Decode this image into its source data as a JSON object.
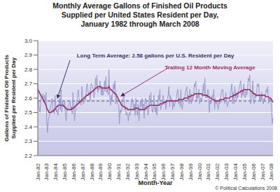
{
  "chart_data": {
    "type": "line",
    "title": [
      "Monthly Average Gallons of Finished Oil Products",
      "Supplied per United States Resident per Day,",
      "January 1982 through March 2008"
    ],
    "x_label": "Month-Year",
    "y_label": [
      "Gallons of Finished Oil Products",
      "Supplied per Resident per Day"
    ],
    "credit": "© Political Calculations 2008",
    "grid": true,
    "ylim": [
      2.2,
      3.0
    ],
    "yticks": [
      2.2,
      2.3,
      2.4,
      2.5,
      2.6,
      2.7,
      2.8,
      2.9,
      {
        "value": 3,
        "label": "3.0"
      }
    ],
    "reference_line": {
      "value": 2.58,
      "label": "Long Term Average: 2.58 gallons per U.S. Resident per Day",
      "line_style": "dashed"
    },
    "categories": [
      "Jan-82",
      null,
      null,
      null,
      null,
      null,
      null,
      null,
      null,
      null,
      null,
      null,
      "Jan-83",
      null,
      null,
      null,
      null,
      null,
      null,
      null,
      null,
      null,
      null,
      null,
      "Jan-84",
      null,
      null,
      null,
      null,
      null,
      null,
      null,
      null,
      null,
      null,
      null,
      "Jan-85",
      null,
      null,
      null,
      null,
      null,
      null,
      null,
      null,
      null,
      null,
      null,
      "Jan-86",
      null,
      null,
      null,
      null,
      null,
      null,
      null,
      null,
      null,
      null,
      null,
      "Jan-87",
      null,
      null,
      null,
      null,
      null,
      null,
      null,
      null,
      null,
      null,
      null,
      "Jan-88",
      null,
      null,
      null,
      null,
      null,
      null,
      null,
      null,
      null,
      null,
      null,
      "Jan-89",
      null,
      null,
      null,
      null,
      null,
      null,
      null,
      null,
      null,
      null,
      null,
      "Jan-90",
      null,
      null,
      null,
      null,
      null,
      null,
      null,
      null,
      null,
      null,
      null,
      "Jan-91",
      null,
      null,
      null,
      null,
      null,
      null,
      null,
      null,
      null,
      null,
      null,
      "Jan-92",
      null,
      null,
      null,
      null,
      null,
      null,
      null,
      null,
      null,
      null,
      null,
      "Jan-93",
      null,
      null,
      null,
      null,
      null,
      null,
      null,
      null,
      null,
      null,
      null,
      "Jan-94",
      null,
      null,
      null,
      null,
      null,
      null,
      null,
      null,
      null,
      null,
      null,
      "Jan-95",
      null,
      null,
      null,
      null,
      null,
      null,
      null,
      null,
      null,
      null,
      null,
      "Jan-96",
      null,
      null,
      null,
      null,
      null,
      null,
      null,
      null,
      null,
      null,
      null,
      "Jan-97",
      null,
      null,
      null,
      null,
      null,
      null,
      null,
      null,
      null,
      null,
      null,
      "Jan-98",
      null,
      null,
      null,
      null,
      null,
      null,
      null,
      null,
      null,
      null,
      null,
      "Jan-99",
      null,
      null,
      null,
      null,
      null,
      null,
      null,
      null,
      null,
      null,
      null,
      "Jan-00",
      null,
      null,
      null,
      null,
      null,
      null,
      null,
      null,
      null,
      null,
      null,
      "Jan-01",
      null,
      null,
      null,
      null,
      null,
      null,
      null,
      null,
      null,
      null,
      null,
      "Jan-02",
      null,
      null,
      null,
      null,
      null,
      null,
      null,
      null,
      null,
      null,
      null,
      "Jan-03",
      null,
      null,
      null,
      null,
      null,
      null,
      null,
      null,
      null,
      null,
      null,
      "Jan-04",
      null,
      null,
      null,
      null,
      null,
      null,
      null,
      null,
      null,
      null,
      null,
      "Jan-05",
      null,
      null,
      null,
      null,
      null,
      null,
      null,
      null,
      null,
      null,
      null,
      "Jan-06",
      null,
      null,
      null,
      null,
      null,
      null,
      null,
      null,
      null,
      null,
      null,
      "Jan-07",
      null,
      null,
      null,
      null,
      null,
      null,
      null,
      null,
      null,
      null,
      null,
      "Jan-08",
      null,
      null
    ],
    "series": [
      {
        "color": "#9999cc",
        "values": [
          2.7,
          2.55,
          2.52,
          2.5,
          2.58,
          2.62,
          2.6,
          2.63,
          2.58,
          2.62,
          2.57,
          2.64,
          2.42,
          2.36,
          2.45,
          2.46,
          2.5,
          2.55,
          2.56,
          2.6,
          2.5,
          2.52,
          2.49,
          2.62,
          2.55,
          2.5,
          2.52,
          2.48,
          2.55,
          2.6,
          2.52,
          2.66,
          2.5,
          2.58,
          2.54,
          2.55,
          2.58,
          2.47,
          2.44,
          2.52,
          2.53,
          2.55,
          2.56,
          2.58,
          2.52,
          2.54,
          2.49,
          2.64,
          2.55,
          2.44,
          2.5,
          2.55,
          2.57,
          2.62,
          2.66,
          2.6,
          2.58,
          2.56,
          2.55,
          2.68,
          2.6,
          2.56,
          2.58,
          2.6,
          2.58,
          2.68,
          2.7,
          2.64,
          2.62,
          2.65,
          2.58,
          2.7,
          2.7,
          2.68,
          2.66,
          2.6,
          2.64,
          2.74,
          2.68,
          2.76,
          2.64,
          2.67,
          2.66,
          2.72,
          2.66,
          2.62,
          2.68,
          2.62,
          2.64,
          2.72,
          2.65,
          2.75,
          2.64,
          2.66,
          2.62,
          2.8,
          2.62,
          2.55,
          2.62,
          2.58,
          2.64,
          2.7,
          2.66,
          2.72,
          2.56,
          2.62,
          2.56,
          2.56,
          2.55,
          2.42,
          2.52,
          2.5,
          2.52,
          2.58,
          2.6,
          2.62,
          2.52,
          2.54,
          2.48,
          2.5,
          2.48,
          2.44,
          2.5,
          2.48,
          2.5,
          2.58,
          2.6,
          2.56,
          2.52,
          2.56,
          2.48,
          2.6,
          2.5,
          2.48,
          2.56,
          2.44,
          2.5,
          2.58,
          2.54,
          2.6,
          2.52,
          2.56,
          2.46,
          2.58,
          2.6,
          2.56,
          2.54,
          2.48,
          2.5,
          2.62,
          2.56,
          2.64,
          2.54,
          2.5,
          2.52,
          2.62,
          2.52,
          2.5,
          2.55,
          2.48,
          2.54,
          2.62,
          2.58,
          2.66,
          2.52,
          2.54,
          2.56,
          2.62,
          2.6,
          2.56,
          2.58,
          2.52,
          2.56,
          2.6,
          2.62,
          2.68,
          2.54,
          2.62,
          2.58,
          2.6,
          2.52,
          2.58,
          2.54,
          2.56,
          2.58,
          2.6,
          2.64,
          2.66,
          2.56,
          2.6,
          2.54,
          2.66,
          2.54,
          2.52,
          2.58,
          2.6,
          2.58,
          2.64,
          2.66,
          2.68,
          2.58,
          2.62,
          2.56,
          2.66,
          2.6,
          2.56,
          2.62,
          2.58,
          2.62,
          2.7,
          2.68,
          2.72,
          2.58,
          2.62,
          2.6,
          2.66,
          2.56,
          2.6,
          2.6,
          2.58,
          2.64,
          2.7,
          2.62,
          2.74,
          2.6,
          2.62,
          2.6,
          2.66,
          2.64,
          2.5,
          2.58,
          2.56,
          2.6,
          2.62,
          2.6,
          2.66,
          2.52,
          2.6,
          2.56,
          2.58,
          2.54,
          2.52,
          2.58,
          2.56,
          2.6,
          2.64,
          2.66,
          2.66,
          2.58,
          2.6,
          2.56,
          2.64,
          2.58,
          2.54,
          2.56,
          2.58,
          2.58,
          2.64,
          2.66,
          2.7,
          2.56,
          2.64,
          2.56,
          2.68,
          2.62,
          2.58,
          2.64,
          2.6,
          2.64,
          2.68,
          2.7,
          2.72,
          2.6,
          2.66,
          2.62,
          2.7,
          2.62,
          2.6,
          2.66,
          2.62,
          2.66,
          2.74,
          2.72,
          2.76,
          2.56,
          2.58,
          2.62,
          2.72,
          2.58,
          2.56,
          2.62,
          2.6,
          2.62,
          2.7,
          2.68,
          2.7,
          2.58,
          2.62,
          2.58,
          2.64,
          2.58,
          2.56,
          2.6,
          2.58,
          2.62,
          2.66,
          2.64,
          2.68,
          2.56,
          2.6,
          2.58,
          2.6,
          2.54,
          2.42,
          2.46
        ]
      },
      {
        "name": "Trailing 12 Month Moving Average",
        "color": "#993366",
        "values": [
          2.66,
          2.65,
          2.64,
          2.63,
          2.62,
          2.61,
          2.6,
          2.59,
          2.58,
          2.57,
          2.56,
          2.55,
          2.53,
          2.52,
          2.51,
          2.5,
          2.5,
          2.5,
          2.5,
          2.51,
          2.51,
          2.51,
          2.52,
          2.52,
          2.53,
          2.54,
          2.54,
          2.55,
          2.55,
          2.55,
          2.55,
          2.55,
          2.55,
          2.55,
          2.55,
          2.54,
          2.54,
          2.53,
          2.53,
          2.52,
          2.52,
          2.52,
          2.52,
          2.52,
          2.52,
          2.52,
          2.53,
          2.53,
          2.53,
          2.54,
          2.54,
          2.55,
          2.55,
          2.56,
          2.56,
          2.57,
          2.57,
          2.58,
          2.58,
          2.59,
          2.59,
          2.6,
          2.6,
          2.61,
          2.61,
          2.62,
          2.62,
          2.62,
          2.63,
          2.63,
          2.63,
          2.64,
          2.64,
          2.65,
          2.65,
          2.66,
          2.66,
          2.67,
          2.67,
          2.67,
          2.68,
          2.68,
          2.68,
          2.68,
          2.68,
          2.67,
          2.67,
          2.67,
          2.67,
          2.67,
          2.67,
          2.67,
          2.67,
          2.67,
          2.67,
          2.68,
          2.67,
          2.66,
          2.66,
          2.65,
          2.65,
          2.64,
          2.64,
          2.63,
          2.63,
          2.62,
          2.61,
          2.6,
          2.59,
          2.58,
          2.57,
          2.56,
          2.55,
          2.55,
          2.54,
          2.54,
          2.54,
          2.53,
          2.53,
          2.53,
          2.52,
          2.52,
          2.52,
          2.52,
          2.52,
          2.52,
          2.52,
          2.52,
          2.52,
          2.52,
          2.53,
          2.53,
          2.53,
          2.53,
          2.53,
          2.52,
          2.52,
          2.52,
          2.52,
          2.52,
          2.52,
          2.52,
          2.52,
          2.52,
          2.53,
          2.53,
          2.54,
          2.54,
          2.54,
          2.55,
          2.55,
          2.55,
          2.55,
          2.55,
          2.55,
          2.55,
          2.55,
          2.55,
          2.55,
          2.55,
          2.55,
          2.55,
          2.55,
          2.56,
          2.56,
          2.56,
          2.56,
          2.56,
          2.57,
          2.57,
          2.57,
          2.57,
          2.58,
          2.58,
          2.58,
          2.58,
          2.58,
          2.58,
          2.58,
          2.58,
          2.58,
          2.58,
          2.58,
          2.58,
          2.58,
          2.58,
          2.58,
          2.58,
          2.59,
          2.59,
          2.59,
          2.59,
          2.59,
          2.59,
          2.59,
          2.6,
          2.6,
          2.6,
          2.6,
          2.6,
          2.6,
          2.61,
          2.61,
          2.61,
          2.61,
          2.62,
          2.62,
          2.62,
          2.62,
          2.63,
          2.63,
          2.63,
          2.63,
          2.63,
          2.63,
          2.63,
          2.63,
          2.63,
          2.63,
          2.63,
          2.62,
          2.62,
          2.62,
          2.62,
          2.62,
          2.62,
          2.62,
          2.61,
          2.61,
          2.61,
          2.6,
          2.6,
          2.6,
          2.59,
          2.59,
          2.59,
          2.58,
          2.58,
          2.58,
          2.58,
          2.58,
          2.58,
          2.58,
          2.59,
          2.59,
          2.59,
          2.59,
          2.59,
          2.59,
          2.6,
          2.6,
          2.6,
          2.6,
          2.6,
          2.6,
          2.6,
          2.6,
          2.61,
          2.61,
          2.61,
          2.61,
          2.62,
          2.62,
          2.62,
          2.62,
          2.63,
          2.63,
          2.63,
          2.64,
          2.64,
          2.64,
          2.65,
          2.65,
          2.65,
          2.65,
          2.66,
          2.66,
          2.66,
          2.66,
          2.66,
          2.66,
          2.66,
          2.66,
          2.66,
          2.65,
          2.65,
          2.64,
          2.64,
          2.63,
          2.63,
          2.63,
          2.62,
          2.62,
          2.62,
          2.62,
          2.62,
          2.62,
          2.62,
          2.62,
          2.62,
          2.62,
          2.62,
          2.62,
          2.62,
          2.61,
          2.61,
          2.61,
          2.61,
          2.61,
          2.6,
          2.6,
          2.6,
          2.59,
          2.58,
          2.57
        ]
      }
    ]
  }
}
